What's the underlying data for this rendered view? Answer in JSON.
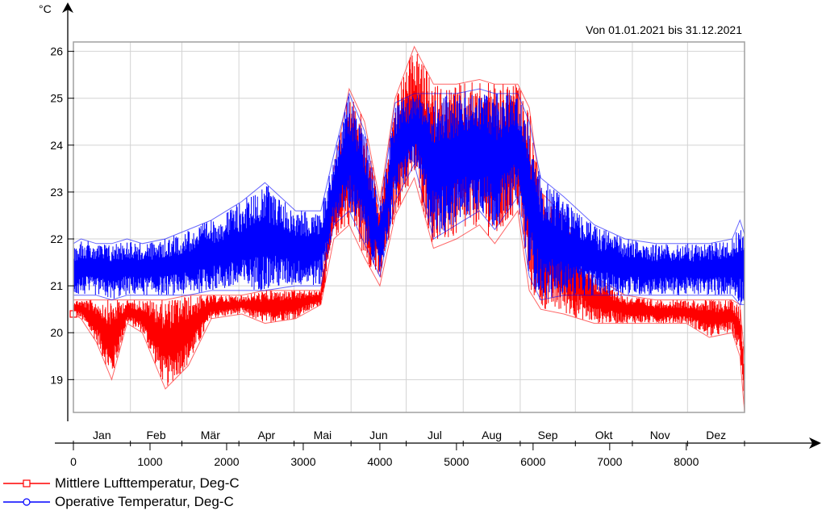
{
  "header": {
    "y_unit": "°C",
    "date_range": "Von 01.01.2021 bis 31.12.2021"
  },
  "legend": [
    {
      "label": "Mittlere Lufttemperatur, Deg-C",
      "color": "#ff0000",
      "marker": "square"
    },
    {
      "label": "Operative Temperatur, Deg-C",
      "color": "#0000ff",
      "marker": "circle"
    }
  ],
  "chart_data": {
    "type": "line",
    "title": "",
    "xlabel": "",
    "ylabel": "°C",
    "xlim": [
      0,
      8760
    ],
    "ylim": [
      18.3,
      26.2
    ],
    "x_ticks": [
      0,
      1000,
      2000,
      3000,
      4000,
      5000,
      6000,
      7000,
      8000
    ],
    "y_ticks": [
      19,
      20,
      21,
      22,
      23,
      24,
      25,
      26
    ],
    "months": [
      "Jan",
      "Feb",
      "Mär",
      "Apr",
      "Mai",
      "Jun",
      "Jul",
      "Aug",
      "Sep",
      "Okt",
      "Nov",
      "Dez"
    ],
    "grid": true,
    "legend_position": "bottom-left",
    "series": [
      {
        "name": "Mittlere Lufttemperatur, Deg-C",
        "color": "#ff0000",
        "x": [
          0,
          100,
          300,
          500,
          700,
          900,
          1200,
          1500,
          1800,
          2200,
          2500,
          2900,
          3230,
          3400,
          3600,
          3800,
          4000,
          4200,
          4450,
          4700,
          5000,
          5300,
          5500,
          5800,
          5950,
          6100,
          6400,
          6800,
          7200,
          7600,
          8000,
          8300,
          8600,
          8700,
          8760
        ],
        "low": [
          20.4,
          20.3,
          19.8,
          19.0,
          20.2,
          20.0,
          18.8,
          19.3,
          20.3,
          20.4,
          20.2,
          20.3,
          20.6,
          22.0,
          22.3,
          21.6,
          21.0,
          22.5,
          23.3,
          21.8,
          22.0,
          22.3,
          21.9,
          22.6,
          20.9,
          20.5,
          20.4,
          20.2,
          20.2,
          20.2,
          20.2,
          19.9,
          20.0,
          19.5,
          18.3
        ],
        "high": [
          20.7,
          20.7,
          20.7,
          20.7,
          20.7,
          20.7,
          20.7,
          20.8,
          20.8,
          20.8,
          20.9,
          20.9,
          20.9,
          23.5,
          25.2,
          24.5,
          22.8,
          25.0,
          26.1,
          25.3,
          25.3,
          25.4,
          25.3,
          25.3,
          24.8,
          23.0,
          22.5,
          21.2,
          20.8,
          20.7,
          20.7,
          20.7,
          20.7,
          20.6,
          19.5
        ]
      },
      {
        "name": "Operative Temperatur, Deg-C",
        "color": "#0000ff",
        "x": [
          0,
          100,
          300,
          500,
          700,
          900,
          1200,
          1500,
          1800,
          2200,
          2500,
          2900,
          3230,
          3400,
          3600,
          3800,
          4000,
          4200,
          4450,
          4700,
          5000,
          5300,
          5500,
          5800,
          5950,
          6100,
          6400,
          6800,
          7200,
          7600,
          8000,
          8300,
          8600,
          8700,
          8760
        ],
        "low": [
          20.8,
          20.8,
          20.8,
          20.7,
          20.8,
          20.8,
          20.8,
          20.8,
          20.9,
          20.9,
          20.9,
          21.0,
          21.0,
          22.3,
          22.6,
          21.9,
          21.2,
          22.8,
          23.6,
          22.0,
          22.3,
          22.6,
          22.2,
          22.9,
          21.2,
          20.7,
          20.8,
          20.8,
          20.8,
          20.8,
          20.8,
          20.8,
          20.8,
          20.6,
          20.6
        ],
        "high": [
          21.9,
          22.0,
          21.9,
          21.9,
          22.0,
          21.9,
          22.0,
          22.2,
          22.4,
          22.8,
          23.2,
          22.6,
          22.6,
          23.8,
          25.1,
          24.3,
          22.6,
          24.9,
          25.1,
          25.1,
          25.1,
          25.2,
          25.1,
          25.1,
          24.5,
          23.3,
          22.9,
          22.3,
          22.0,
          21.9,
          21.9,
          21.9,
          22.0,
          22.4,
          22.1
        ]
      }
    ]
  }
}
